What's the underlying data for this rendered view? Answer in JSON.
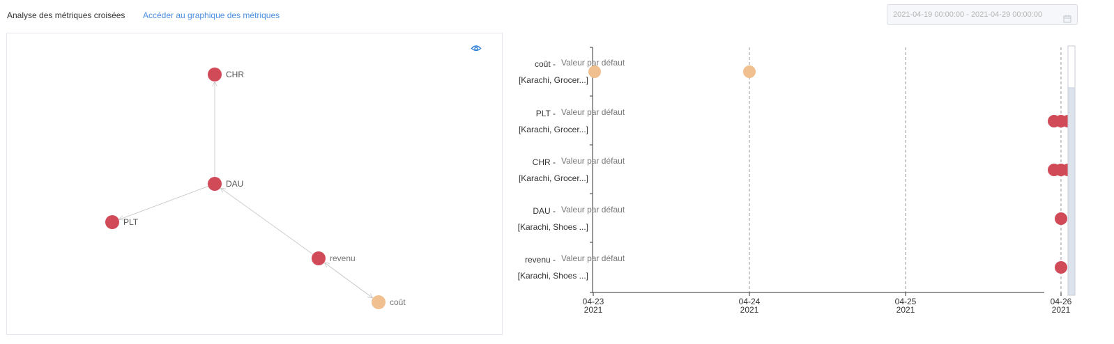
{
  "header": {
    "title": "Analyse des métriques croisées",
    "link_label": "Accéder au graphique des métriques"
  },
  "date_range": {
    "value": "2021-04-19 00:00:00 - 2021-04-29 00:00:00",
    "icon": "calendar-icon"
  },
  "graph": {
    "toggle_icon": "eye-icon",
    "nodes": [
      {
        "id": "CHR",
        "label": "CHR",
        "color": "#d04a58"
      },
      {
        "id": "DAU",
        "label": "DAU",
        "color": "#d04a58"
      },
      {
        "id": "PLT",
        "label": "PLT",
        "color": "#d04a58"
      },
      {
        "id": "revenu",
        "label": "revenu",
        "color": "#d04a58"
      },
      {
        "id": "cout",
        "label": "coût",
        "color": "#f0c090"
      }
    ],
    "edges": [
      {
        "from": "DAU",
        "to": "CHR"
      },
      {
        "from": "DAU",
        "to": "PLT"
      },
      {
        "from": "revenu",
        "to": "DAU"
      },
      {
        "from": "cout",
        "to": "revenu"
      },
      {
        "from": "revenu",
        "to": "cout"
      }
    ]
  },
  "timeline": {
    "colors": {
      "primary": "#d04a58",
      "secondary": "#f0c090",
      "axis": "#333333",
      "grid": "#999999"
    },
    "rows": [
      {
        "name": "coût",
        "tag": "Valeur par défaut",
        "dims": "[Karachi, Grocer...]"
      },
      {
        "name": "PLT",
        "tag": "Valeur par défaut",
        "dims": "[Karachi, Grocer...]"
      },
      {
        "name": "CHR",
        "tag": "Valeur par défaut",
        "dims": "[Karachi, Grocer...]"
      },
      {
        "name": "DAU",
        "tag": "Valeur par défaut",
        "dims": "[Karachi, Shoes ...]"
      },
      {
        "name": "revenu",
        "tag": "Valeur par défaut",
        "dims": "[Karachi, Shoes ...]"
      }
    ],
    "x_ticks": [
      {
        "date": "04-23",
        "year": "2021"
      },
      {
        "date": "04-24",
        "year": "2021"
      },
      {
        "date": "04-25",
        "year": "2021"
      },
      {
        "date": "04-26",
        "year": "2021"
      }
    ]
  }
}
